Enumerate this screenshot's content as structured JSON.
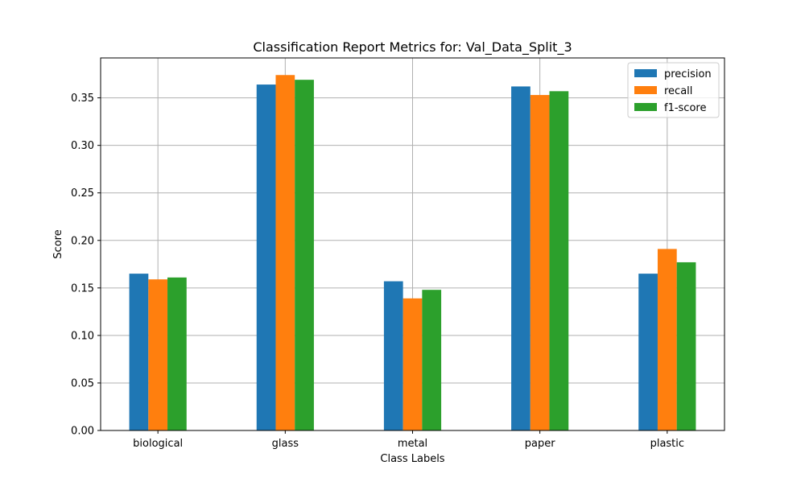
{
  "chart_data": {
    "type": "bar",
    "title": "Classification Report Metrics for: Val_Data_Split_3",
    "xlabel": "Class Labels",
    "ylabel": "Score",
    "categories": [
      "biological",
      "glass",
      "metal",
      "paper",
      "plastic"
    ],
    "series": [
      {
        "name": "precision",
        "color": "#1f77b4",
        "values": [
          0.165,
          0.364,
          0.157,
          0.362,
          0.165
        ]
      },
      {
        "name": "recall",
        "color": "#ff7f0e",
        "values": [
          0.159,
          0.374,
          0.139,
          0.353,
          0.191
        ]
      },
      {
        "name": "f1-score",
        "color": "#2ca02c",
        "values": [
          0.161,
          0.369,
          0.148,
          0.357,
          0.177
        ]
      }
    ],
    "ylim": [
      0,
      0.392
    ],
    "yticks": [
      "0.00",
      "0.05",
      "0.10",
      "0.15",
      "0.20",
      "0.25",
      "0.30",
      "0.35"
    ],
    "grid": true,
    "legend_position": "top-right"
  }
}
